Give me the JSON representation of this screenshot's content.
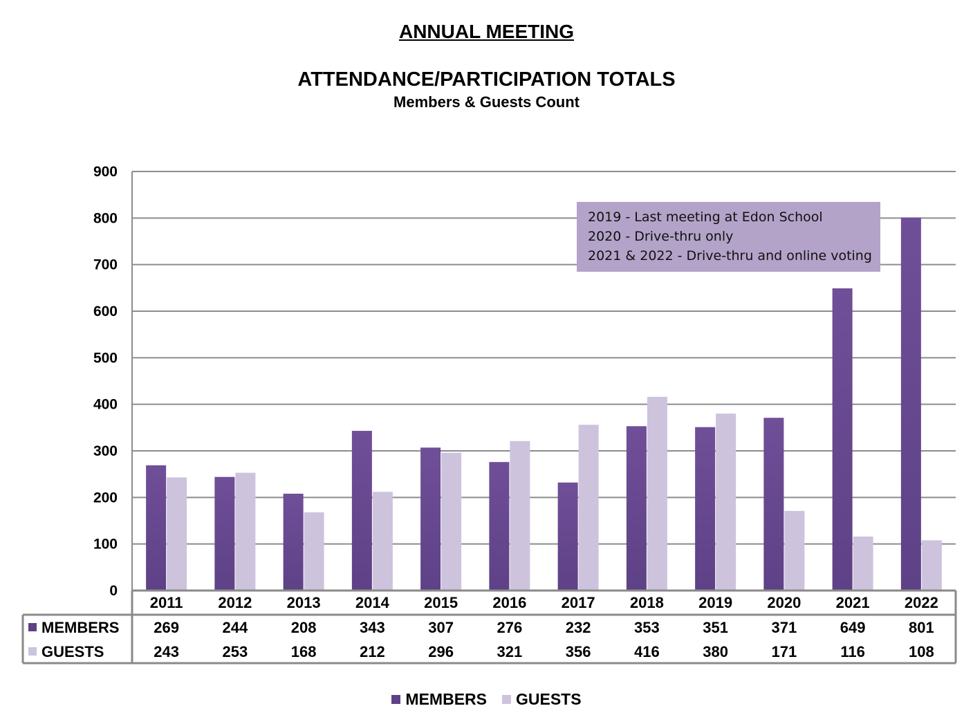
{
  "page_title": "ANNUAL MEETING",
  "colors": {
    "members": "#5e4186",
    "members_light": "#6f4f98",
    "guests": "#cdc3dd",
    "gridline": "#8c8c8c",
    "table_border": "#8a8a8a",
    "annotation_bg": "#b3a3c9"
  },
  "chart_data": {
    "type": "bar",
    "title": "ATTENDANCE/PARTICIPATION TOTALS",
    "subtitle": "Members & Guests Count",
    "categories": [
      "2011",
      "2012",
      "2013",
      "2014",
      "2015",
      "2016",
      "2017",
      "2018",
      "2019",
      "2020",
      "2021",
      "2022"
    ],
    "series": [
      {
        "name": "MEMBERS",
        "values": [
          269,
          244,
          208,
          343,
          307,
          276,
          232,
          353,
          351,
          371,
          649,
          801
        ]
      },
      {
        "name": "GUESTS",
        "values": [
          243,
          253,
          168,
          212,
          296,
          321,
          356,
          416,
          380,
          171,
          116,
          108
        ]
      }
    ],
    "ylim": [
      0,
      900
    ],
    "yticks": [
      0,
      100,
      200,
      300,
      400,
      500,
      600,
      700,
      800,
      900
    ],
    "xlabel": "",
    "ylabel": "",
    "grid": true,
    "legend_position": "bottom",
    "data_table": true,
    "annotations": [
      "2019 - Last meeting at Edon School",
      "2020 - Drive-thru only",
      "2021 & 2022 - Drive-thru and online voting"
    ]
  }
}
